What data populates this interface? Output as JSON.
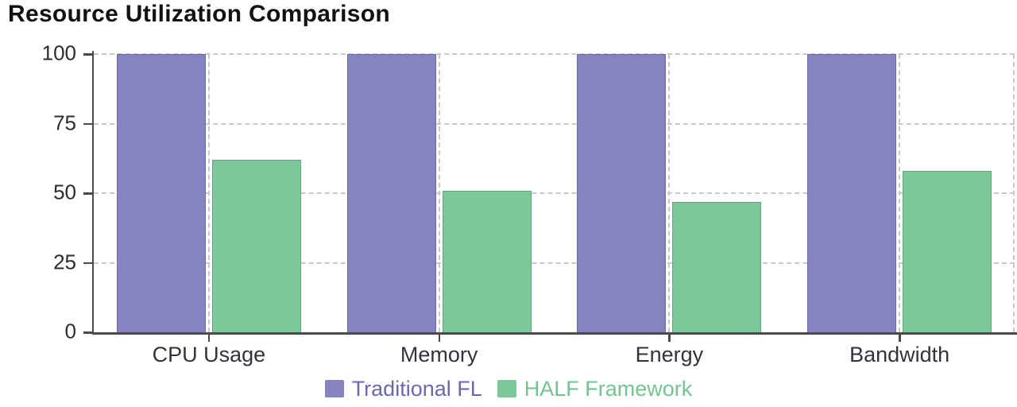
{
  "title": "Resource Utilization Comparison",
  "chart_data": {
    "type": "bar",
    "title": "Resource Utilization Comparison",
    "categories": [
      "CPU Usage",
      "Memory",
      "Energy",
      "Bandwidth"
    ],
    "series": [
      {
        "name": "Traditional FL",
        "values": [
          100,
          100,
          100,
          100
        ],
        "color": "#8683c1",
        "label_color": "#6b68ae"
      },
      {
        "name": "HALF Framework",
        "values": [
          62,
          51,
          47,
          58
        ],
        "color": "#7cc89a",
        "label_color": "#74c492"
      }
    ],
    "ylim": [
      0,
      100
    ],
    "yticks": [
      0,
      25,
      50,
      75,
      100
    ],
    "xlabel": "",
    "ylabel": "",
    "grid": "dashed",
    "legend_position": "bottom"
  },
  "colors": {
    "background": "#ffffff",
    "axis": "#4b4b4b",
    "gridline": "#c9c9c9",
    "title_text": "#121212",
    "tick_label_text": "#2c2c31",
    "category_label_text": "#31353b"
  }
}
